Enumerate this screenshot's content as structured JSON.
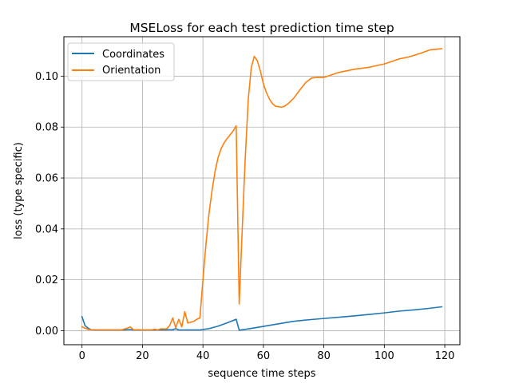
{
  "chart_data": {
    "type": "line",
    "title": "MSELoss for each test prediction time step",
    "xlabel": "sequence time steps",
    "ylabel": "loss (type specific)",
    "xlim": [
      -6,
      125
    ],
    "ylim": [
      -0.0055,
      0.1155
    ],
    "xticks": [
      0,
      20,
      40,
      60,
      80,
      100,
      120
    ],
    "yticks": [
      0.0,
      0.02,
      0.04,
      0.06,
      0.08,
      0.1
    ],
    "ytick_labels": [
      "0.00",
      "0.02",
      "0.04",
      "0.06",
      "0.08",
      "0.10"
    ],
    "grid": true,
    "legend_position": "top-left",
    "series": [
      {
        "name": "Coordinates",
        "color": "#1f77b4",
        "points": [
          [
            0,
            0.0055
          ],
          [
            1,
            0.002
          ],
          [
            2,
            0.001
          ],
          [
            3,
            0.0004
          ],
          [
            5,
            0.0003
          ],
          [
            10,
            0.0003
          ],
          [
            14,
            0.0003
          ],
          [
            16,
            0.0005
          ],
          [
            17,
            0.0003
          ],
          [
            20,
            0.0003
          ],
          [
            25,
            0.0003
          ],
          [
            30,
            0.0004
          ],
          [
            31,
            0.0008
          ],
          [
            32,
            0.0003
          ],
          [
            35,
            0.0003
          ],
          [
            39,
            0.0003
          ],
          [
            42,
            0.0008
          ],
          [
            45,
            0.0018
          ],
          [
            48,
            0.0031
          ],
          [
            51,
            0.0045
          ],
          [
            52,
            0.0002
          ],
          [
            55,
            0.0007
          ],
          [
            60,
            0.0017
          ],
          [
            65,
            0.0027
          ],
          [
            70,
            0.0037
          ],
          [
            75,
            0.0043
          ],
          [
            80,
            0.0048
          ],
          [
            85,
            0.0053
          ],
          [
            90,
            0.0058
          ],
          [
            95,
            0.0064
          ],
          [
            100,
            0.007
          ],
          [
            105,
            0.0077
          ],
          [
            110,
            0.0082
          ],
          [
            115,
            0.0088
          ],
          [
            119,
            0.0094
          ]
        ]
      },
      {
        "name": "Orientation",
        "color": "#ff7f0e",
        "points": [
          [
            0,
            0.0015
          ],
          [
            1,
            0.001
          ],
          [
            2,
            0.0005
          ],
          [
            4,
            0.0003
          ],
          [
            8,
            0.0003
          ],
          [
            13,
            0.0003
          ],
          [
            15,
            0.001
          ],
          [
            16,
            0.0015
          ],
          [
            17,
            0.0004
          ],
          [
            20,
            0.0003
          ],
          [
            23,
            0.0003
          ],
          [
            24,
            0.0006
          ],
          [
            25,
            0.0003
          ],
          [
            26,
            0.0007
          ],
          [
            28,
            0.0007
          ],
          [
            29,
            0.002
          ],
          [
            30,
            0.005
          ],
          [
            31,
            0.0012
          ],
          [
            32,
            0.0045
          ],
          [
            33,
            0.0015
          ],
          [
            34,
            0.0075
          ],
          [
            35,
            0.003
          ],
          [
            37,
            0.0037
          ],
          [
            38,
            0.0045
          ],
          [
            39,
            0.005
          ],
          [
            40,
            0.02
          ],
          [
            41,
            0.034
          ],
          [
            42,
            0.046
          ],
          [
            43,
            0.055
          ],
          [
            44,
            0.0625
          ],
          [
            45,
            0.068
          ],
          [
            46,
            0.0715
          ],
          [
            47,
            0.0738
          ],
          [
            48,
            0.0755
          ],
          [
            49,
            0.077
          ],
          [
            50,
            0.0785
          ],
          [
            51,
            0.0805
          ],
          [
            52,
            0.0105
          ],
          [
            53,
            0.04
          ],
          [
            54,
            0.068
          ],
          [
            55,
            0.091
          ],
          [
            56,
            0.1035
          ],
          [
            57,
            0.1078
          ],
          [
            58,
            0.106
          ],
          [
            59,
            0.102
          ],
          [
            60,
            0.097
          ],
          [
            61,
            0.0935
          ],
          [
            62,
            0.091
          ],
          [
            63,
            0.0892
          ],
          [
            64,
            0.0882
          ],
          [
            66,
            0.0878
          ],
          [
            67,
            0.0882
          ],
          [
            68,
            0.089
          ],
          [
            70,
            0.0913
          ],
          [
            72,
            0.0945
          ],
          [
            74,
            0.0975
          ],
          [
            76,
            0.0993
          ],
          [
            78,
            0.0995
          ],
          [
            80,
            0.0995
          ],
          [
            82,
            0.1003
          ],
          [
            85,
            0.1015
          ],
          [
            88,
            0.1022
          ],
          [
            90,
            0.1027
          ],
          [
            95,
            0.1035
          ],
          [
            100,
            0.1048
          ],
          [
            105,
            0.1068
          ],
          [
            108,
            0.1075
          ],
          [
            112,
            0.109
          ],
          [
            115,
            0.1103
          ],
          [
            119,
            0.1108
          ]
        ]
      }
    ]
  }
}
